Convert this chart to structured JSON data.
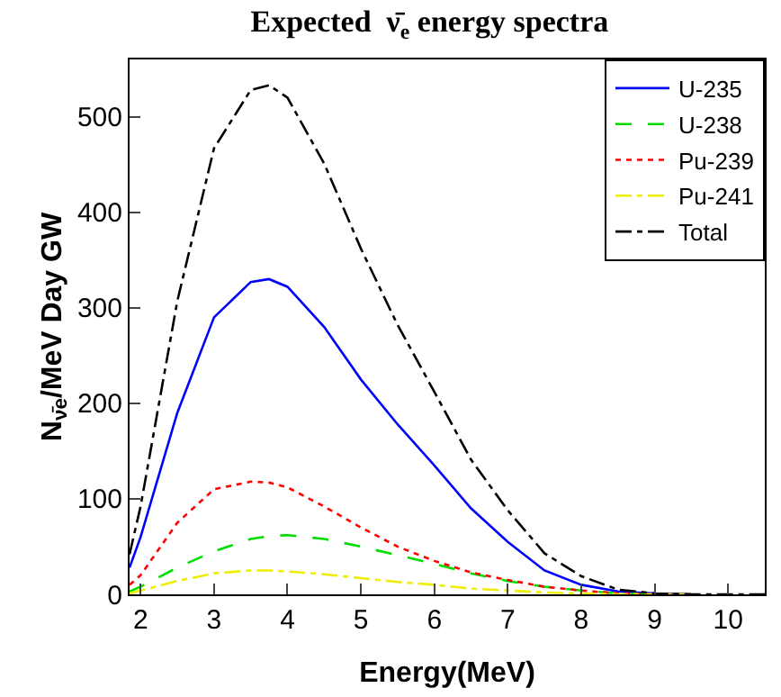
{
  "chart_data": {
    "type": "line",
    "title": "Expected  ν̄$_{e}$ energy spectra",
    "xlabel": "Energy(MeV)",
    "ylabel": "N$_{ν̄e}$/MeV Day GW",
    "x": [
      1.85,
      2,
      2.5,
      3,
      3.5,
      3.75,
      4,
      4.5,
      5,
      5.5,
      6,
      6.5,
      7,
      7.5,
      8,
      8.5,
      9,
      9.5,
      10,
      10.5
    ],
    "series": [
      {
        "name": "U-235",
        "color": "#0000ff",
        "line_style": "solid",
        "values": [
          28,
          60,
          190,
          290,
          327,
          330,
          322,
          280,
          225,
          178,
          135,
          90,
          55,
          25,
          10,
          3,
          1,
          0,
          null,
          null
        ]
      },
      {
        "name": "U-238",
        "color": "#00dd00",
        "line_style": "dashed",
        "values": [
          3,
          8,
          28,
          45,
          58,
          61,
          62,
          58,
          50,
          41,
          32,
          22,
          14,
          8,
          4,
          1,
          0,
          0,
          null,
          null
        ]
      },
      {
        "name": "Pu-239",
        "color": "#ff0000",
        "line_style": "dotted",
        "values": [
          10,
          20,
          75,
          110,
          118,
          117,
          112,
          92,
          70,
          50,
          35,
          23,
          15,
          8,
          4,
          1,
          0,
          0,
          null,
          null
        ]
      },
      {
        "name": "Pu-241",
        "color": "#eeee00",
        "line_style": "dashdot",
        "values": [
          1,
          4,
          14,
          22,
          25,
          25,
          24,
          21,
          17,
          13,
          10,
          6,
          4,
          2,
          1,
          0,
          0,
          0,
          null,
          null
        ]
      },
      {
        "name": "Total",
        "color": "#000000",
        "line_style": "dashdot",
        "values": [
          42,
          92,
          307,
          467,
          528,
          533,
          520,
          451,
          362,
          282,
          212,
          141,
          88,
          43,
          19,
          5,
          1,
          0,
          0,
          0
        ]
      }
    ],
    "xlim": [
      1.85,
      10.5
    ],
    "ylim": [
      0,
      560
    ],
    "xticks": [
      2,
      3,
      4,
      5,
      6,
      7,
      8,
      9,
      10
    ],
    "yticks": [
      0,
      100,
      200,
      300,
      400,
      500
    ],
    "legend": "top right",
    "marker": "none"
  }
}
